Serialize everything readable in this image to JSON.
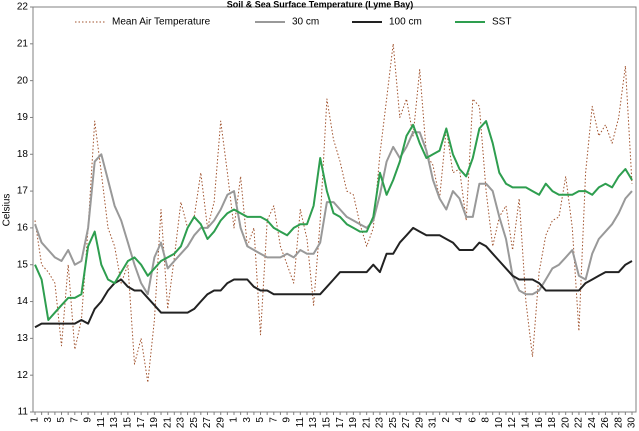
{
  "chart_data": {
    "type": "line",
    "title": "Soil & Sea Surface Temperature (Lyme Bay)",
    "y_label": "Celsius",
    "categories": [
      "1",
      null,
      "3",
      null,
      "5",
      null,
      "7",
      null,
      "9",
      null,
      "11",
      null,
      "13",
      null,
      "15",
      null,
      "17",
      null,
      "19",
      null,
      "21",
      null,
      "23",
      null,
      "25",
      null,
      "27",
      null,
      "29",
      null,
      "1",
      null,
      "3",
      null,
      "5",
      null,
      "7",
      null,
      "9",
      null,
      "11",
      null,
      "13",
      null,
      "15",
      null,
      "17",
      null,
      "19",
      null,
      "21",
      null,
      "23",
      null,
      "25",
      null,
      "27",
      null,
      "29",
      null,
      "31",
      null,
      "2",
      null,
      "4",
      null,
      "6",
      null,
      "8",
      null,
      "10",
      null,
      "12",
      null,
      "14",
      null,
      "16",
      null,
      "18",
      null,
      "20",
      null,
      "22",
      null,
      "24",
      null,
      "26",
      null,
      "28",
      null,
      "30"
    ],
    "series": [
      {
        "name": "Mean Air Temperature",
        "color": "#a0522d",
        "dash": "dotted",
        "values": [
          16.2,
          15.0,
          14.8,
          14.5,
          12.8,
          15.0,
          12.7,
          13.5,
          16.0,
          18.9,
          17.5,
          16.0,
          15.5,
          14.5,
          15.0,
          12.3,
          13.0,
          11.8,
          13.5,
          16.5,
          13.8,
          15.2,
          16.7,
          16.0,
          16.3,
          17.5,
          16.0,
          16.7,
          18.9,
          17.5,
          16.0,
          17.4,
          15.5,
          16.0,
          13.1,
          16.2,
          16.6,
          15.5,
          15.0,
          14.5,
          16.5,
          15.7,
          13.9,
          16.2,
          19.5,
          18.4,
          17.8,
          17.0,
          16.9,
          16.1,
          15.5,
          16.0,
          18.0,
          19.5,
          21.0,
          19.0,
          19.5,
          18.5,
          20.3,
          18.0,
          17.7,
          16.8,
          18.7,
          17.5,
          17.6,
          16.2,
          19.5,
          19.3,
          17.0,
          15.5,
          16.3,
          16.6,
          15.4,
          16.8,
          14.0,
          12.5,
          14.8,
          15.8,
          16.2,
          16.3,
          17.4,
          16.0,
          13.2,
          17.5,
          19.3,
          18.5,
          18.8,
          18.3,
          19.0,
          20.4,
          17.2
        ]
      },
      {
        "name": "30 cm",
        "color": "#999999",
        "values": [
          16.1,
          15.6,
          15.4,
          15.2,
          15.1,
          15.4,
          15.0,
          15.1,
          16.0,
          17.8,
          18.0,
          17.3,
          16.6,
          16.2,
          15.6,
          15.0,
          14.5,
          14.2,
          15.2,
          15.6,
          14.9,
          15.1,
          15.3,
          15.5,
          15.8,
          16.0,
          16.0,
          16.2,
          16.5,
          16.9,
          17.0,
          16.0,
          15.5,
          15.4,
          15.3,
          15.2,
          15.2,
          15.2,
          15.3,
          15.2,
          15.4,
          15.3,
          15.3,
          15.6,
          16.7,
          16.7,
          16.5,
          16.3,
          16.2,
          16.1,
          16.0,
          16.2,
          16.9,
          17.8,
          18.2,
          17.9,
          18.2,
          18.6,
          18.6,
          18.1,
          17.3,
          16.8,
          16.5,
          17.0,
          16.8,
          16.3,
          16.3,
          17.2,
          17.2,
          17.0,
          16.3,
          15.7,
          14.7,
          14.3,
          14.2,
          14.2,
          14.3,
          14.6,
          14.9,
          15.0,
          15.2,
          15.4,
          14.7,
          14.6,
          15.3,
          15.7,
          15.9,
          16.1,
          16.4,
          16.8,
          17.0
        ]
      },
      {
        "name": "100 cm",
        "color": "#222222",
        "values": [
          13.3,
          13.4,
          13.4,
          13.4,
          13.4,
          13.4,
          13.4,
          13.5,
          13.4,
          13.8,
          14.0,
          14.3,
          14.5,
          14.6,
          14.4,
          14.3,
          14.3,
          14.1,
          13.9,
          13.7,
          13.7,
          13.7,
          13.7,
          13.7,
          13.8,
          14.0,
          14.2,
          14.3,
          14.3,
          14.5,
          14.6,
          14.6,
          14.6,
          14.4,
          14.3,
          14.3,
          14.2,
          14.2,
          14.2,
          14.2,
          14.2,
          14.2,
          14.2,
          14.2,
          14.4,
          14.6,
          14.8,
          14.8,
          14.8,
          14.8,
          14.8,
          15.0,
          14.8,
          15.3,
          15.3,
          15.6,
          15.8,
          16.0,
          15.9,
          15.8,
          15.8,
          15.8,
          15.7,
          15.6,
          15.4,
          15.4,
          15.4,
          15.6,
          15.5,
          15.3,
          15.1,
          14.9,
          14.7,
          14.6,
          14.6,
          14.6,
          14.5,
          14.3,
          14.3,
          14.3,
          14.3,
          14.3,
          14.3,
          14.5,
          14.6,
          14.7,
          14.8,
          14.8,
          14.8,
          15.0,
          15.1
        ]
      },
      {
        "name": "SST",
        "color": "#2e9e4f",
        "values": [
          15.0,
          14.6,
          13.5,
          13.7,
          13.9,
          14.1,
          14.1,
          14.2,
          15.5,
          15.9,
          15.0,
          14.6,
          14.5,
          14.8,
          15.1,
          15.2,
          15.0,
          14.7,
          14.9,
          15.1,
          15.2,
          15.3,
          15.5,
          16.0,
          16.3,
          16.1,
          15.7,
          15.9,
          16.2,
          16.4,
          16.5,
          16.4,
          16.3,
          16.3,
          16.3,
          16.2,
          16.0,
          15.9,
          15.8,
          16.0,
          16.1,
          16.1,
          16.6,
          17.9,
          17.0,
          16.4,
          16.3,
          16.1,
          16.0,
          15.9,
          15.9,
          16.3,
          17.5,
          16.9,
          17.3,
          17.8,
          18.5,
          18.8,
          18.3,
          17.9,
          18.0,
          18.1,
          18.7,
          18.0,
          17.6,
          17.4,
          17.9,
          18.7,
          18.9,
          18.3,
          17.5,
          17.2,
          17.1,
          17.1,
          17.1,
          17.0,
          16.9,
          17.2,
          17.0,
          16.9,
          16.9,
          16.9,
          17.0,
          17.0,
          16.9,
          17.1,
          17.2,
          17.1,
          17.4,
          17.6,
          17.3
        ]
      }
    ],
    "ylim": [
      11,
      22
    ],
    "yticks": [
      11,
      12,
      13,
      14,
      15,
      16,
      17,
      18,
      19,
      20,
      21,
      22
    ],
    "grid": false,
    "legend": "top"
  }
}
